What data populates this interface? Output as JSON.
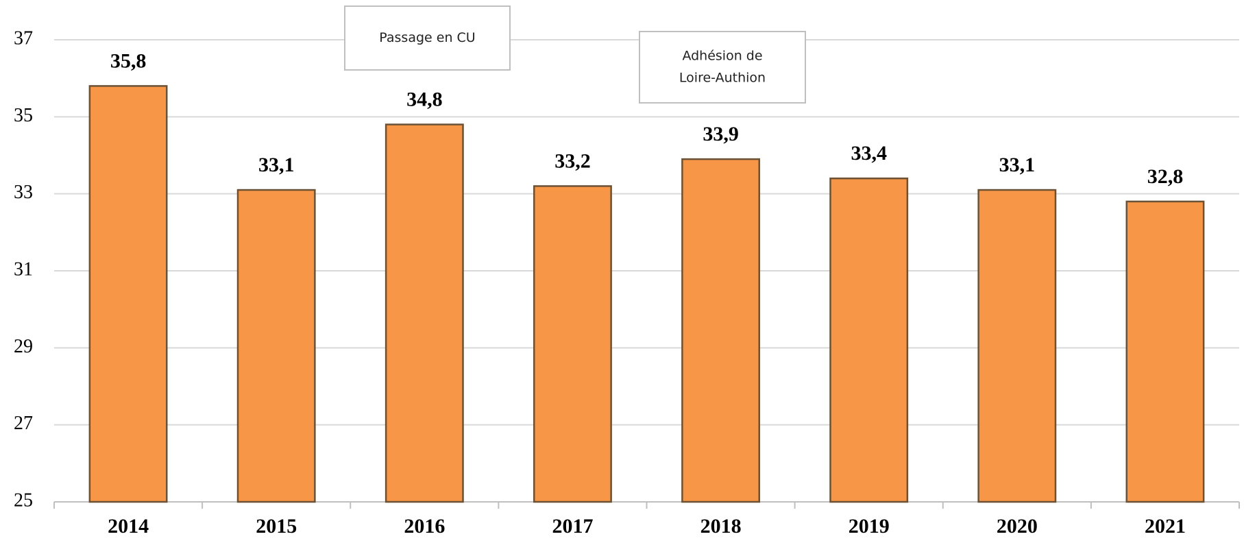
{
  "chart_data": {
    "type": "bar",
    "categories": [
      "2014",
      "2015",
      "2016",
      "2017",
      "2018",
      "2019",
      "2020",
      "2021"
    ],
    "values": [
      35.8,
      33.1,
      34.8,
      33.2,
      33.9,
      33.4,
      33.1,
      32.8
    ],
    "value_labels": [
      "35,8",
      "33,1",
      "34,8",
      "33,2",
      "33,9",
      "33,4",
      "33,1",
      "32,8"
    ],
    "color": "#f79646",
    "ylim": [
      25,
      37
    ],
    "yticks": [
      25,
      27,
      29,
      31,
      33,
      35,
      37
    ],
    "grid": true,
    "annotations": [
      {
        "lines": [
          "Passage en CU"
        ]
      },
      {
        "lines": [
          "Adhésion de",
          "Loire-Authion"
        ]
      }
    ]
  }
}
